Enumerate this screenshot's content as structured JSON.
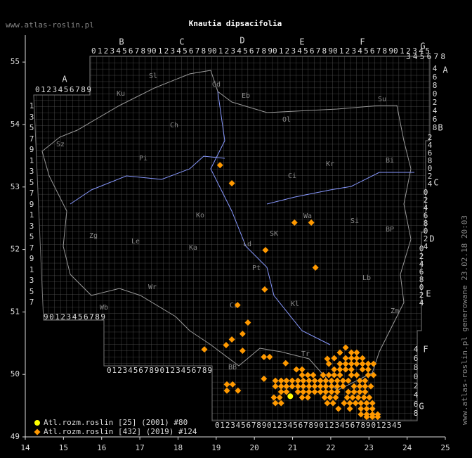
{
  "map": {
    "title": "Knautia dipsacifolia",
    "site": "www.atlas-roslin.pl",
    "generated": "www.atlas-roslin.pl generowane 23.02.18 20:03",
    "xlim": [
      14,
      25
    ],
    "xticks": [
      14,
      15,
      16,
      17,
      18,
      19,
      20,
      21,
      22,
      23,
      24,
      25
    ],
    "ylim": [
      49,
      55.43
    ],
    "yticks": [
      49,
      50,
      51,
      52,
      53,
      54,
      55
    ],
    "series": [
      {
        "name": "Atl.rozm.roslin [25] (2001) #80",
        "color": "#ffff00",
        "marker": "circle",
        "points": [
          [
            20.94,
            49.65
          ]
        ]
      },
      {
        "name": "Atl.rozm.roslin [432] (2019) #124",
        "color": "#ff9900",
        "marker": "diamond",
        "points": [
          [
            19.1,
            53.35
          ],
          [
            19.41,
            53.06
          ],
          [
            21.05,
            52.43
          ],
          [
            21.49,
            52.43
          ],
          [
            20.29,
            51.99
          ],
          [
            21.6,
            51.71
          ],
          [
            20.27,
            51.36
          ],
          [
            19.56,
            51.11
          ],
          [
            19.83,
            50.83
          ],
          [
            19.69,
            50.65
          ],
          [
            19.41,
            50.56
          ],
          [
            19.26,
            50.47
          ],
          [
            18.69,
            50.4
          ],
          [
            19.69,
            50.38
          ],
          [
            20.25,
            50.28
          ],
          [
            20.4,
            50.28
          ],
          [
            20.82,
            50.18
          ],
          [
            20.25,
            49.93
          ],
          [
            22.39,
            50.43
          ],
          [
            21.91,
            50.25
          ],
          [
            19.28,
            49.84
          ],
          [
            19.43,
            49.84
          ],
          [
            19.28,
            49.74
          ],
          [
            19.57,
            49.74
          ],
          [
            22.24,
            50.35
          ],
          [
            22.54,
            50.35
          ],
          [
            22.68,
            50.35
          ],
          [
            22.09,
            50.26
          ],
          [
            22.39,
            50.26
          ],
          [
            22.54,
            50.26
          ],
          [
            22.68,
            50.26
          ],
          [
            22.83,
            50.26
          ],
          [
            21.95,
            50.17
          ],
          [
            22.24,
            50.17
          ],
          [
            22.39,
            50.17
          ],
          [
            22.54,
            50.17
          ],
          [
            22.68,
            50.17
          ],
          [
            22.83,
            50.17
          ],
          [
            22.98,
            50.17
          ],
          [
            23.12,
            50.17
          ],
          [
            21.1,
            50.08
          ],
          [
            21.25,
            50.08
          ],
          [
            22.09,
            50.08
          ],
          [
            22.24,
            50.08
          ],
          [
            22.39,
            50.08
          ],
          [
            22.54,
            50.08
          ],
          [
            22.83,
            50.08
          ],
          [
            22.98,
            50.08
          ],
          [
            21.25,
            49.99
          ],
          [
            21.4,
            49.99
          ],
          [
            21.54,
            49.99
          ],
          [
            21.8,
            49.99
          ],
          [
            21.95,
            49.99
          ],
          [
            22.09,
            49.99
          ],
          [
            22.24,
            49.99
          ],
          [
            22.54,
            49.99
          ],
          [
            22.68,
            49.99
          ],
          [
            22.98,
            49.99
          ],
          [
            23.12,
            49.99
          ],
          [
            20.55,
            49.9
          ],
          [
            20.7,
            49.9
          ],
          [
            20.84,
            49.9
          ],
          [
            20.99,
            49.9
          ],
          [
            21.14,
            49.9
          ],
          [
            21.28,
            49.9
          ],
          [
            21.43,
            49.9
          ],
          [
            21.58,
            49.9
          ],
          [
            21.73,
            49.9
          ],
          [
            21.87,
            49.9
          ],
          [
            22.02,
            49.9
          ],
          [
            22.17,
            49.9
          ],
          [
            22.32,
            49.9
          ],
          [
            22.46,
            49.9
          ],
          [
            22.76,
            49.9
          ],
          [
            22.9,
            49.9
          ],
          [
            20.55,
            49.81
          ],
          [
            20.7,
            49.81
          ],
          [
            20.84,
            49.81
          ],
          [
            20.99,
            49.81
          ],
          [
            21.14,
            49.81
          ],
          [
            21.28,
            49.81
          ],
          [
            21.43,
            49.81
          ],
          [
            21.58,
            49.81
          ],
          [
            21.73,
            49.81
          ],
          [
            21.87,
            49.81
          ],
          [
            22.02,
            49.81
          ],
          [
            22.17,
            49.81
          ],
          [
            22.32,
            49.81
          ],
          [
            22.61,
            49.81
          ],
          [
            22.76,
            49.81
          ],
          [
            22.9,
            49.81
          ],
          [
            23.05,
            49.81
          ],
          [
            20.7,
            49.72
          ],
          [
            20.84,
            49.72
          ],
          [
            21.14,
            49.72
          ],
          [
            21.28,
            49.72
          ],
          [
            21.43,
            49.72
          ],
          [
            21.58,
            49.72
          ],
          [
            21.73,
            49.72
          ],
          [
            21.87,
            49.72
          ],
          [
            22.02,
            49.72
          ],
          [
            22.17,
            49.72
          ],
          [
            22.46,
            49.72
          ],
          [
            22.61,
            49.72
          ],
          [
            22.76,
            49.72
          ],
          [
            22.9,
            49.72
          ],
          [
            20.51,
            49.63
          ],
          [
            20.66,
            49.63
          ],
          [
            21.25,
            49.63
          ],
          [
            21.4,
            49.63
          ],
          [
            21.84,
            49.63
          ],
          [
            21.98,
            49.63
          ],
          [
            22.13,
            49.63
          ],
          [
            22.43,
            49.63
          ],
          [
            22.57,
            49.63
          ],
          [
            22.72,
            49.63
          ],
          [
            22.87,
            49.63
          ],
          [
            23.01,
            49.63
          ],
          [
            20.55,
            49.54
          ],
          [
            20.7,
            49.54
          ],
          [
            21.91,
            49.54
          ],
          [
            22.06,
            49.54
          ],
          [
            22.35,
            49.54
          ],
          [
            22.5,
            49.54
          ],
          [
            22.65,
            49.54
          ],
          [
            22.79,
            49.54
          ],
          [
            22.94,
            49.54
          ],
          [
            23.09,
            49.54
          ],
          [
            22.2,
            49.45
          ],
          [
            22.5,
            49.45
          ],
          [
            22.79,
            49.45
          ],
          [
            22.94,
            49.45
          ],
          [
            23.09,
            49.45
          ],
          [
            22.79,
            49.36
          ],
          [
            22.94,
            49.36
          ],
          [
            23.09,
            49.36
          ],
          [
            23.23,
            49.36
          ],
          [
            22.94,
            49.32
          ],
          [
            23.09,
            49.32
          ],
          [
            23.23,
            49.32
          ]
        ]
      }
    ],
    "regions": [
      "Sl",
      "Ku",
      "Gd",
      "Eb",
      "Su",
      "Ol",
      "Ch",
      "Sz",
      "Pi",
      "Ci",
      "Bi",
      "Kr",
      "Ko",
      "Zg",
      "Le",
      "Ld",
      "SK",
      "Pt",
      "Lb",
      "BP",
      "Si",
      "Wa",
      "Ka",
      "Kl",
      "Wr",
      "Wb",
      "Cz",
      "BB",
      "Tr",
      "Zm"
    ],
    "letters": [
      "B",
      "C",
      "D",
      "E",
      "F",
      "G",
      "A",
      "A",
      "B",
      "C",
      "D",
      "E",
      "F",
      "G"
    ],
    "digits_h": [
      "0123456789",
      "0123456789",
      "0123456789",
      "0123456789",
      "0123456789",
      "012345",
      "345678",
      "0123456789",
      "90123456789",
      "01234567890123456789",
      "012345678901234567890123456789012345"
    ],
    "digits_v": [
      "1357913579135791357",
      "46802468",
      "2468024",
      "02468024",
      "02468024",
      "46802468"
    ]
  }
}
